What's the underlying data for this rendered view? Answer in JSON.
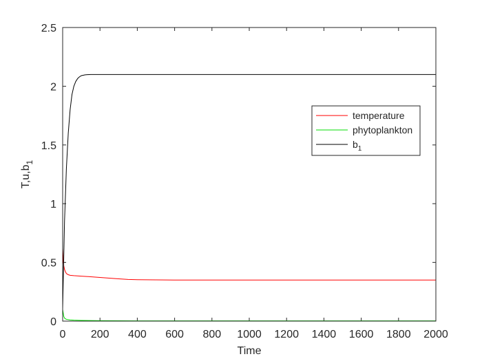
{
  "chart_data": {
    "type": "line",
    "xlabel": "Time",
    "ylabel": "T,u,b",
    "ylabel_subscript": "1",
    "xlim": [
      0,
      2000
    ],
    "ylim": [
      0,
      2.5
    ],
    "xticks": [
      0,
      200,
      400,
      600,
      800,
      1000,
      1200,
      1400,
      1600,
      1800,
      2000
    ],
    "yticks": [
      0,
      0.5,
      1,
      1.5,
      2,
      2.5
    ],
    "xtick_labels": [
      "0",
      "200",
      "400",
      "600",
      "800",
      "1000",
      "1200",
      "1400",
      "1600",
      "1800",
      "2000"
    ],
    "ytick_labels": [
      "0",
      "0.5",
      "1",
      "1.5",
      "2",
      "2.5"
    ],
    "grid": false,
    "legend_position": "upper-right",
    "series": [
      {
        "name": "temperature",
        "legend_label": "temperature",
        "color": "#ff0000",
        "x": [
          0,
          3,
          6,
          10,
          15,
          20,
          30,
          40,
          60,
          100,
          150,
          200,
          250,
          300,
          350,
          400,
          450,
          500,
          600,
          800,
          1000,
          1500,
          2000
        ],
        "y": [
          0.62,
          0.52,
          0.47,
          0.44,
          0.42,
          0.405,
          0.395,
          0.39,
          0.387,
          0.383,
          0.378,
          0.372,
          0.366,
          0.36,
          0.355,
          0.353,
          0.352,
          0.351,
          0.35,
          0.35,
          0.35,
          0.35,
          0.35
        ]
      },
      {
        "name": "phytoplankton",
        "legend_label": "phytoplankton",
        "color": "#00dd00",
        "x": [
          0,
          3,
          6,
          10,
          20,
          40,
          60,
          100,
          200,
          300,
          400,
          600,
          1000,
          1500,
          2000
        ],
        "y": [
          0.1,
          0.07,
          0.04,
          0.025,
          0.015,
          0.01,
          0.008,
          0.006,
          0.004,
          0.003,
          0.002,
          0.002,
          0.002,
          0.002,
          0.002
        ]
      },
      {
        "name": "b1",
        "legend_label": "b",
        "legend_subscript": "1",
        "color": "#000000",
        "x": [
          0,
          10,
          20,
          30,
          40,
          50,
          60,
          70,
          80,
          90,
          100,
          120,
          150,
          200,
          300,
          500,
          1000,
          1500,
          2000
        ],
        "y": [
          0.1,
          0.85,
          1.3,
          1.6,
          1.8,
          1.93,
          2.0,
          2.04,
          2.065,
          2.08,
          2.09,
          2.097,
          2.1,
          2.1,
          2.1,
          2.1,
          2.1,
          2.1,
          2.1
        ]
      }
    ]
  }
}
